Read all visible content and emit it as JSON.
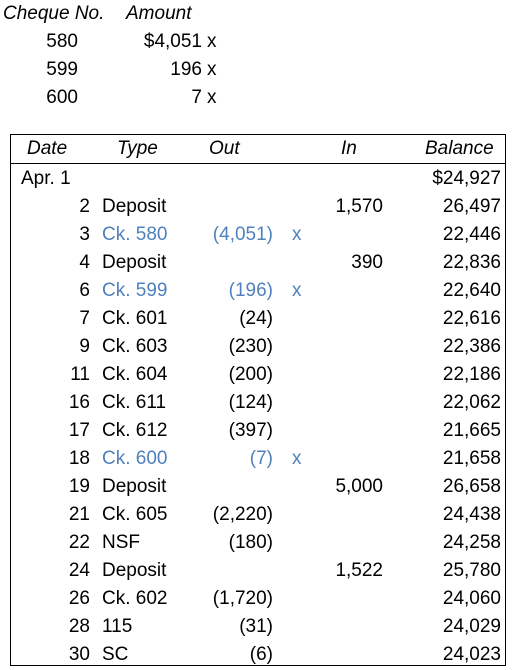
{
  "cheques": {
    "header": {
      "no": "Cheque No.",
      "amount": "Amount"
    },
    "rows": [
      {
        "no": "580",
        "amount": "$4,051",
        "mark": "x"
      },
      {
        "no": "599",
        "amount": "196",
        "mark": "x"
      },
      {
        "no": "600",
        "amount": "7",
        "mark": "x"
      }
    ]
  },
  "statement": {
    "headers": {
      "date": "Date",
      "type": "Type",
      "out": "Out",
      "in": "In",
      "balance": "Balance"
    },
    "highlight_color": "#4f81bd",
    "rows": [
      {
        "date": "Apr. 1",
        "type": "",
        "out": "",
        "mark": "",
        "in": "",
        "balance": "$24,927",
        "highlight": false
      },
      {
        "date": "2",
        "type": "Deposit",
        "out": "",
        "mark": "",
        "in": "1,570",
        "balance": "26,497",
        "highlight": false
      },
      {
        "date": "3",
        "type": "Ck. 580",
        "out": "(4,051)",
        "mark": "x",
        "in": "",
        "balance": "22,446",
        "highlight": true
      },
      {
        "date": "4",
        "type": "Deposit",
        "out": "",
        "mark": "",
        "in": "390",
        "balance": "22,836",
        "highlight": false
      },
      {
        "date": "6",
        "type": "Ck. 599",
        "out": "(196)",
        "mark": "x",
        "in": "",
        "balance": "22,640",
        "highlight": true
      },
      {
        "date": "7",
        "type": "Ck. 601",
        "out": "(24)",
        "mark": "",
        "in": "",
        "balance": "22,616",
        "highlight": false
      },
      {
        "date": "9",
        "type": "Ck. 603",
        "out": "(230)",
        "mark": "",
        "in": "",
        "balance": "22,386",
        "highlight": false
      },
      {
        "date": "11",
        "type": "Ck. 604",
        "out": "(200)",
        "mark": "",
        "in": "",
        "balance": "22,186",
        "highlight": false
      },
      {
        "date": "16",
        "type": "Ck. 611",
        "out": "(124)",
        "mark": "",
        "in": "",
        "balance": "22,062",
        "highlight": false
      },
      {
        "date": "17",
        "type": "Ck. 612",
        "out": "(397)",
        "mark": "",
        "in": "",
        "balance": "21,665",
        "highlight": false
      },
      {
        "date": "18",
        "type": "Ck. 600",
        "out": "(7)",
        "mark": "x",
        "in": "",
        "balance": "21,658",
        "highlight": true
      },
      {
        "date": "19",
        "type": "Deposit",
        "out": "",
        "mark": "",
        "in": "5,000",
        "balance": "26,658",
        "highlight": false
      },
      {
        "date": "21",
        "type": "Ck. 605",
        "out": "(2,220)",
        "mark": "",
        "in": "",
        "balance": "24,438",
        "highlight": false
      },
      {
        "date": "22",
        "type": "NSF",
        "out": "(180)",
        "mark": "",
        "in": "",
        "balance": "24,258",
        "highlight": false
      },
      {
        "date": "24",
        "type": "Deposit",
        "out": "",
        "mark": "",
        "in": "1,522",
        "balance": "25,780",
        "highlight": false
      },
      {
        "date": "26",
        "type": "Ck. 602",
        "out": "(1,720)",
        "mark": "",
        "in": "",
        "balance": "24,060",
        "highlight": false
      },
      {
        "date": "28",
        "type": "115",
        "out": "(31)",
        "mark": "",
        "in": "",
        "balance": "24,029",
        "highlight": false
      },
      {
        "date": "30",
        "type": "SC",
        "out": "(6)",
        "mark": "",
        "in": "",
        "balance": "24,023",
        "highlight": false
      }
    ]
  }
}
